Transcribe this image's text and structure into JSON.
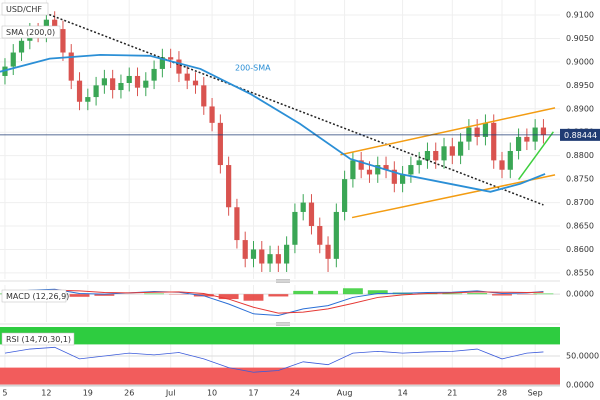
{
  "chart_data": [
    {
      "type": "candlestick",
      "title": "USD/CHF",
      "legend": "SMA (200,0)",
      "grid": true,
      "up_color": "#3aa655",
      "down_color": "#d9534f",
      "xlim": [
        -0.6,
        67
      ],
      "ylim": [
        0.8537,
        0.9132
      ],
      "xticks": [
        {
          "value": 0,
          "label": "5"
        },
        {
          "value": 5,
          "label": "12"
        },
        {
          "value": 10,
          "label": "19"
        },
        {
          "value": 15,
          "label": "26"
        },
        {
          "value": 20,
          "label": "Jul"
        },
        {
          "value": 25,
          "label": "10"
        },
        {
          "value": 30,
          "label": "17"
        },
        {
          "value": 35,
          "label": "24"
        },
        {
          "value": 41,
          "label": "Aug"
        },
        {
          "value": 48,
          "label": "14"
        },
        {
          "value": 54,
          "label": "21"
        },
        {
          "value": 60,
          "label": "28"
        },
        {
          "value": 64,
          "label": "Sep"
        }
      ],
      "yticks": [
        {
          "value": 0.91,
          "label": "0.9100"
        },
        {
          "value": 0.905,
          "label": "0.9050"
        },
        {
          "value": 0.9,
          "label": "0.9000"
        },
        {
          "value": 0.895,
          "label": "0.8950"
        },
        {
          "value": 0.89,
          "label": "0.8900"
        },
        {
          "value": 0.885,
          "label": "0.8850"
        },
        {
          "value": 0.88,
          "label": "0.8800"
        },
        {
          "value": 0.875,
          "label": "0.8750"
        },
        {
          "value": 0.87,
          "label": "0.8700"
        },
        {
          "value": 0.865,
          "label": "0.8650"
        },
        {
          "value": 0.86,
          "label": "0.8600"
        },
        {
          "value": 0.855,
          "label": "0.8550"
        }
      ],
      "open": [
        0.897,
        0.899,
        0.902,
        0.9045,
        0.9065,
        0.906,
        0.909,
        0.907,
        0.902,
        0.896,
        0.8915,
        0.8925,
        0.895,
        0.8965,
        0.894,
        0.8955,
        0.897,
        0.8945,
        0.896,
        0.8985,
        0.901,
        0.9005,
        0.8975,
        0.896,
        0.895,
        0.8905,
        0.887,
        0.878,
        0.869,
        0.862,
        0.858,
        0.86,
        0.857,
        0.859,
        0.857,
        0.861,
        0.868,
        0.87,
        0.865,
        0.861,
        0.858,
        0.868,
        0.875,
        0.879,
        0.877,
        0.876,
        0.878,
        0.877,
        0.874,
        0.876,
        0.878,
        0.879,
        0.881,
        0.879,
        0.882,
        0.88,
        0.883,
        0.886,
        0.884,
        0.887,
        0.879,
        0.877,
        0.881,
        0.884,
        0.883,
        0.886
      ],
      "high": [
        0.9008,
        0.9038,
        0.9063,
        0.9083,
        0.9083,
        0.911,
        0.9108,
        0.9088,
        0.9038,
        0.8978,
        0.8943,
        0.8968,
        0.8983,
        0.8983,
        0.8973,
        0.8988,
        0.8988,
        0.8978,
        0.9003,
        0.9028,
        0.9028,
        0.9023,
        0.8993,
        0.8978,
        0.8968,
        0.8923,
        0.8888,
        0.8798,
        0.8708,
        0.8638,
        0.8618,
        0.8618,
        0.8608,
        0.8608,
        0.8628,
        0.8698,
        0.8718,
        0.8718,
        0.8668,
        0.8628,
        0.8698,
        0.8768,
        0.8808,
        0.8808,
        0.8788,
        0.8798,
        0.8798,
        0.8788,
        0.8778,
        0.8798,
        0.8808,
        0.8828,
        0.8828,
        0.8838,
        0.8838,
        0.8848,
        0.8878,
        0.8878,
        0.8888,
        0.8888,
        0.8808,
        0.8828,
        0.8858,
        0.8858,
        0.8878,
        0.8878
      ],
      "low": [
        0.8952,
        0.8972,
        0.9002,
        0.9027,
        0.9042,
        0.9042,
        0.9052,
        0.9002,
        0.8942,
        0.8897,
        0.8897,
        0.8907,
        0.8932,
        0.8922,
        0.8922,
        0.8937,
        0.8927,
        0.8927,
        0.8942,
        0.8967,
        0.8987,
        0.8957,
        0.8942,
        0.8932,
        0.8887,
        0.8852,
        0.8762,
        0.8672,
        0.8602,
        0.8562,
        0.8562,
        0.8552,
        0.8552,
        0.8552,
        0.8552,
        0.8592,
        0.8662,
        0.8632,
        0.8592,
        0.8552,
        0.8562,
        0.8662,
        0.8732,
        0.8752,
        0.8742,
        0.8742,
        0.8752,
        0.8722,
        0.8722,
        0.8742,
        0.8762,
        0.8772,
        0.8772,
        0.8772,
        0.8782,
        0.8782,
        0.8812,
        0.8822,
        0.8822,
        0.8772,
        0.8752,
        0.8752,
        0.8792,
        0.8812,
        0.8812,
        0.8826
      ],
      "close": [
        0.899,
        0.902,
        0.9045,
        0.9065,
        0.906,
        0.909,
        0.907,
        0.902,
        0.896,
        0.8915,
        0.8925,
        0.895,
        0.8965,
        0.894,
        0.8955,
        0.897,
        0.8945,
        0.896,
        0.8985,
        0.901,
        0.9005,
        0.8975,
        0.896,
        0.895,
        0.8905,
        0.887,
        0.878,
        0.869,
        0.862,
        0.858,
        0.86,
        0.857,
        0.859,
        0.857,
        0.861,
        0.868,
        0.87,
        0.865,
        0.861,
        0.858,
        0.868,
        0.875,
        0.879,
        0.877,
        0.876,
        0.878,
        0.877,
        0.874,
        0.876,
        0.878,
        0.879,
        0.881,
        0.879,
        0.882,
        0.88,
        0.883,
        0.886,
        0.884,
        0.887,
        0.879,
        0.877,
        0.881,
        0.884,
        0.883,
        0.886,
        0.8844
      ],
      "sma": {
        "name": "200-SMA",
        "color": "#2b8fd6",
        "x": [
          -0.6,
          5.4,
          11.5,
          17.5,
          23.6,
          29.6,
          35.6,
          41.7,
          47.7,
          53.7,
          58.6,
          62.2,
          65.2
        ],
        "values": [
          0.8979,
          0.9007,
          0.9015,
          0.9013,
          0.8985,
          0.8932,
          0.8868,
          0.8793,
          0.8761,
          0.874,
          0.8723,
          0.874,
          0.8761
        ]
      },
      "trendlines": [
        {
          "color": "#222222",
          "dashed": true,
          "x": [
            4,
            65
          ],
          "y": [
            0.911,
            0.8695
          ]
        },
        {
          "color": "#f39c12",
          "x": [
            40.5,
            66.4
          ],
          "y": [
            0.8802,
            0.8902
          ]
        },
        {
          "color": "#f39c12",
          "x": [
            41.9,
            66.4
          ],
          "y": [
            0.8668,
            0.8759
          ]
        },
        {
          "color": "#3ecf3e",
          "x": [
            62,
            66.2
          ],
          "y": [
            0.8749,
            0.8851
          ]
        }
      ],
      "last_price": {
        "value": 0.88444,
        "label": "0.88444",
        "color": "#1f3b73"
      }
    },
    {
      "type": "macd",
      "title": "MACD (12,26,9)",
      "ylim": [
        -0.0085,
        0.0028
      ],
      "yticks": [
        {
          "value": 0,
          "label": "0.0000"
        }
      ],
      "x": [
        0,
        3,
        6,
        9,
        12,
        15,
        18,
        21,
        24,
        27,
        30,
        33,
        36,
        39,
        42,
        45,
        48,
        51,
        54,
        57,
        60,
        63,
        65
      ],
      "histogram": {
        "up_color": "#33cc33",
        "down_color": "#e53935",
        "values": [
          0.0002,
          0.0004,
          0.0003,
          -0.0008,
          -0.0005,
          0.0,
          0.0002,
          -0.0001,
          -0.0007,
          -0.0015,
          -0.002,
          -0.0007,
          0.001,
          0.001,
          0.0018,
          0.0012,
          0.0005,
          0.0003,
          0.0002,
          0.0003,
          -0.0004,
          -0.0001,
          0.0002
        ]
      },
      "series": [
        {
          "color": "#2b6fd6",
          "values": [
            0.0005,
            0.0012,
            0.0015,
            0.0002,
            0.0,
            0.0004,
            0.0008,
            0.0006,
            -0.0005,
            -0.003,
            -0.006,
            -0.0065,
            -0.0045,
            -0.0035,
            -0.001,
            0.0002,
            0.0003,
            0.0005,
            0.0006,
            0.001,
            0.0002,
            0.0004,
            0.0008
          ]
        },
        {
          "color": "#e53935",
          "values": [
            0.0003,
            0.0008,
            0.0012,
            0.001,
            0.0005,
            0.0004,
            0.0006,
            0.0007,
            0.0002,
            -0.0015,
            -0.004,
            -0.0058,
            -0.0055,
            -0.0045,
            -0.0028,
            -0.001,
            -0.0002,
            0.0002,
            0.0004,
            0.0007,
            0.0006,
            0.0005,
            0.0006
          ]
        }
      ]
    },
    {
      "type": "rsi",
      "title": "RSI (14,70,30,1)",
      "ylim": [
        0,
        100
      ],
      "yticks": [
        {
          "value": 0,
          "label": "0.0000"
        },
        {
          "value": 50,
          "label": "50.0000"
        }
      ],
      "overbought": 70,
      "oversold": 30,
      "overbought_color": "#2ecc40",
      "oversold_color": "#f25c5c",
      "x": [
        0,
        3,
        6,
        9,
        12,
        15,
        18,
        21,
        24,
        27,
        30,
        33,
        36,
        39,
        42,
        45,
        48,
        51,
        54,
        57,
        60,
        63,
        65
      ],
      "series": [
        {
          "color": "#3b5bdb",
          "values": [
            55,
            62,
            65,
            45,
            50,
            55,
            52,
            56,
            45,
            30,
            22,
            25,
            40,
            35,
            55,
            58,
            55,
            57,
            58,
            62,
            45,
            55,
            57
          ]
        }
      ]
    }
  ]
}
